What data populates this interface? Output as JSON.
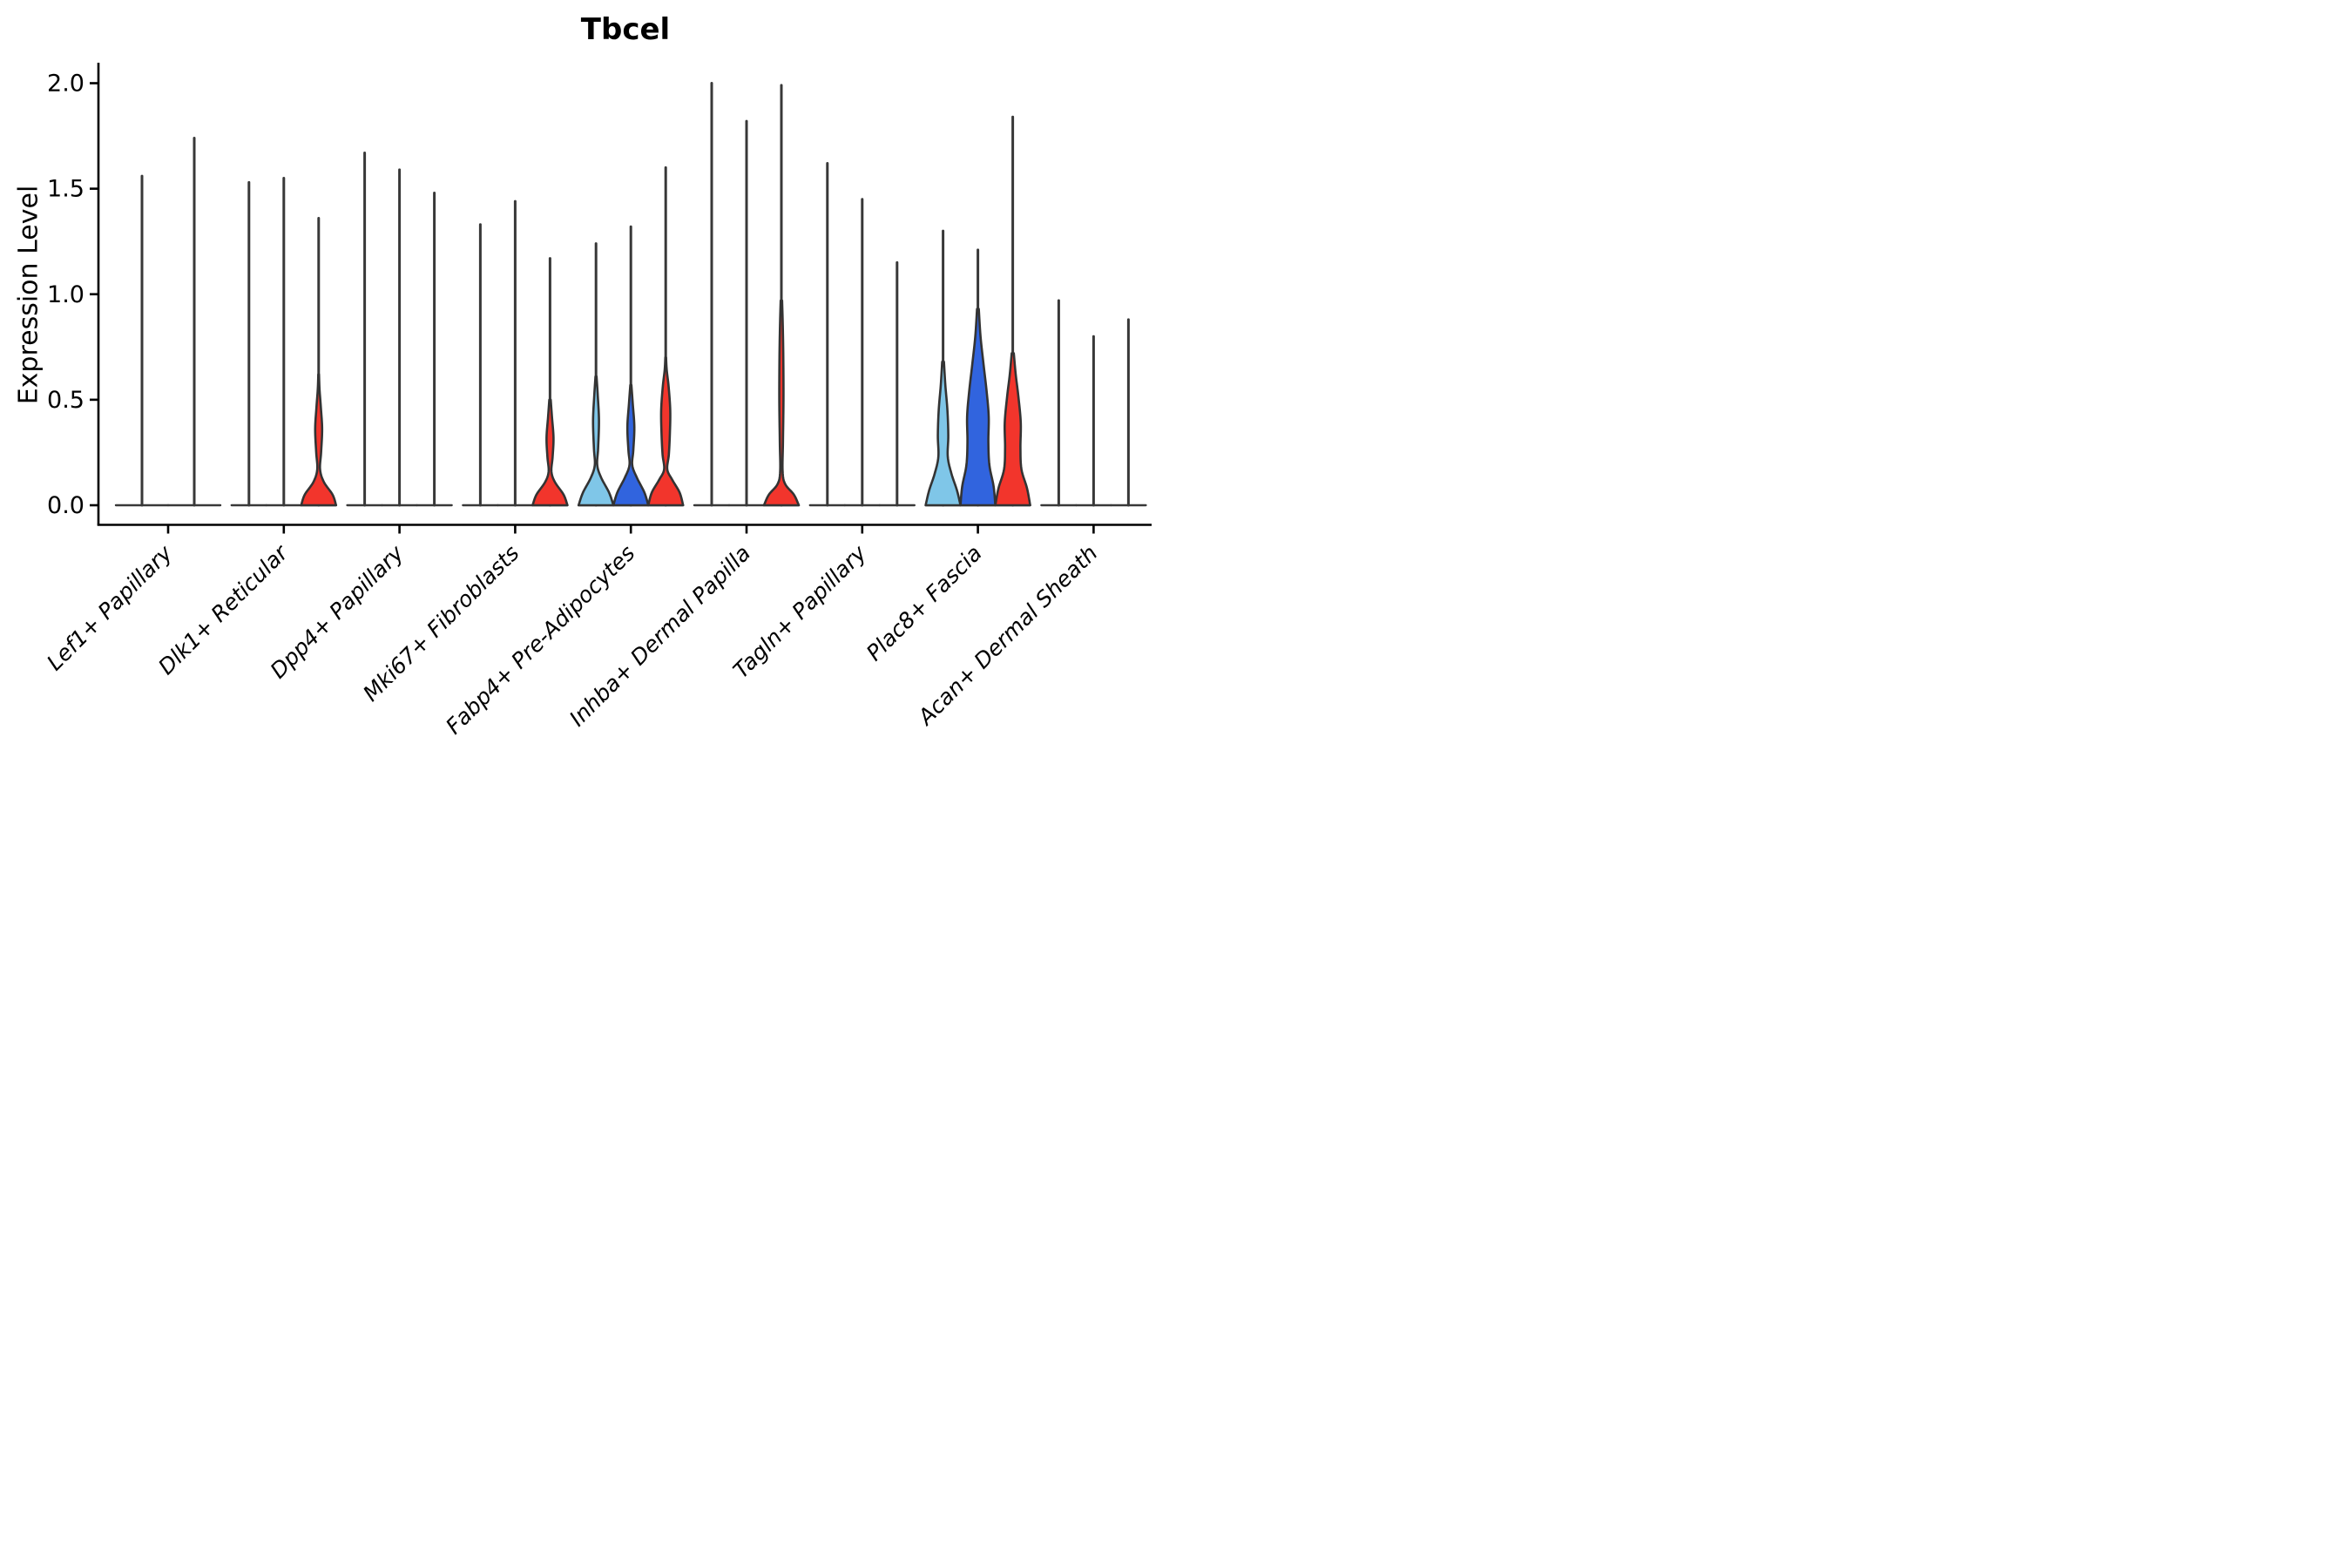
{
  "title": "Tbcel",
  "ylabel": "Expression Level",
  "colors": {
    "lightblue": "#7FC6E8",
    "blue": "#3164DE",
    "red": "#F2352C",
    "outline": "#333333",
    "spike": "#383838",
    "axis": "#000000"
  },
  "chart_data": {
    "type": "violin",
    "title": "Tbcel",
    "ylabel": "Expression Level",
    "xlabel": "",
    "ylim": [
      -0.09,
      2.07
    ],
    "grid": false,
    "legend": "none",
    "yticks": [
      {
        "label": "0.0",
        "value": 0.0
      },
      {
        "label": "0.5",
        "value": 0.5
      },
      {
        "label": "1.0",
        "value": 1.0
      },
      {
        "label": "1.5",
        "value": 1.5
      },
      {
        "label": "2.0",
        "value": 2.0
      }
    ],
    "categories": [
      "Lef1+ Papillary",
      "Dlk1+ Reticular",
      "Dpp4+ Papillary",
      "Mki67+ Fibroblasts",
      "Fabp4+ Pre-Adipocytes",
      "Inhba+ Dermal Papilla",
      "Tagln+ Papillary",
      "Plac8+ Fascia",
      "Acan+ Dermal Sheath"
    ],
    "groups": [
      {
        "category": "Lef1+ Papillary",
        "violins": [
          {
            "color": "lightblue",
            "max": 1.56,
            "offset": -30,
            "half_width": 30,
            "profile": null
          },
          {
            "color": "blue",
            "max": 1.74,
            "offset": 30,
            "half_width": 30,
            "profile": null
          }
        ]
      },
      {
        "category": "Dlk1+ Reticular",
        "violins": [
          {
            "color": "lightblue",
            "max": 1.53,
            "offset": -40,
            "half_width": 20,
            "profile": null
          },
          {
            "color": "blue",
            "max": 1.55,
            "offset": 0,
            "half_width": 20,
            "profile": null
          },
          {
            "color": "red",
            "max": 1.36,
            "offset": 40,
            "half_width": 20,
            "profile": [
              [
                0,
                1.0
              ],
              [
                0.05,
                0.8
              ],
              [
                0.11,
                0.3
              ],
              [
                0.17,
                0.08
              ],
              [
                0.25,
                0.14
              ],
              [
                0.36,
                0.2
              ],
              [
                0.46,
                0.13
              ],
              [
                0.55,
                0.05
              ],
              [
                0.62,
                0.02
              ]
            ]
          }
        ]
      },
      {
        "category": "Dpp4+ Papillary",
        "violins": [
          {
            "color": "lightblue",
            "max": 1.67,
            "offset": -40,
            "half_width": 20,
            "profile": null
          },
          {
            "color": "blue",
            "max": 1.59,
            "offset": 0,
            "half_width": 20,
            "profile": null
          },
          {
            "color": "red",
            "max": 1.48,
            "offset": 40,
            "half_width": 20,
            "profile": null
          }
        ]
      },
      {
        "category": "Mki67+ Fibroblasts",
        "violins": [
          {
            "color": "lightblue",
            "max": 1.33,
            "offset": -40,
            "half_width": 20,
            "profile": null
          },
          {
            "color": "blue",
            "max": 1.44,
            "offset": 0,
            "half_width": 20,
            "profile": null
          },
          {
            "color": "red",
            "max": 1.17,
            "offset": 40,
            "half_width": 20,
            "profile": [
              [
                0,
                1.0
              ],
              [
                0.05,
                0.78
              ],
              [
                0.11,
                0.28
              ],
              [
                0.16,
                0.08
              ],
              [
                0.23,
                0.15
              ],
              [
                0.32,
                0.2
              ],
              [
                0.42,
                0.11
              ],
              [
                0.5,
                0.04
              ]
            ]
          }
        ]
      },
      {
        "category": "Fabp4+ Pre-Adipocytes",
        "violins": [
          {
            "color": "lightblue",
            "max": 1.24,
            "offset": -40,
            "half_width": 20,
            "profile": [
              [
                0,
                1.0
              ],
              [
                0.06,
                0.75
              ],
              [
                0.13,
                0.3
              ],
              [
                0.19,
                0.07
              ],
              [
                0.27,
                0.12
              ],
              [
                0.4,
                0.17
              ],
              [
                0.52,
                0.1
              ],
              [
                0.61,
                0.03
              ]
            ]
          },
          {
            "color": "blue",
            "max": 1.32,
            "offset": 0,
            "half_width": 20,
            "profile": [
              [
                0,
                1.0
              ],
              [
                0.06,
                0.78
              ],
              [
                0.13,
                0.35
              ],
              [
                0.19,
                0.08
              ],
              [
                0.26,
                0.14
              ],
              [
                0.37,
                0.2
              ],
              [
                0.48,
                0.11
              ],
              [
                0.57,
                0.03
              ]
            ]
          },
          {
            "color": "red",
            "max": 1.6,
            "offset": 40,
            "half_width": 20,
            "profile": [
              [
                0,
                1.0
              ],
              [
                0.06,
                0.8
              ],
              [
                0.12,
                0.38
              ],
              [
                0.17,
                0.09
              ],
              [
                0.24,
                0.18
              ],
              [
                0.34,
                0.24
              ],
              [
                0.45,
                0.26
              ],
              [
                0.56,
                0.17
              ],
              [
                0.64,
                0.06
              ],
              [
                0.7,
                0.02
              ]
            ]
          }
        ]
      },
      {
        "category": "Inhba+ Dermal Papilla",
        "violins": [
          {
            "color": "lightblue",
            "max": 2.0,
            "offset": -40,
            "half_width": 20,
            "profile": null
          },
          {
            "color": "blue",
            "max": 1.82,
            "offset": 0,
            "half_width": 20,
            "profile": null
          },
          {
            "color": "red",
            "max": 1.99,
            "offset": 40,
            "half_width": 20,
            "profile": [
              [
                0,
                1.0
              ],
              [
                0.05,
                0.72
              ],
              [
                0.1,
                0.22
              ],
              [
                0.16,
                0.07
              ],
              [
                0.3,
                0.09
              ],
              [
                0.5,
                0.12
              ],
              [
                0.7,
                0.11
              ],
              [
                0.85,
                0.08
              ],
              [
                0.97,
                0.04
              ]
            ]
          }
        ]
      },
      {
        "category": "Tagln+ Papillary",
        "violins": [
          {
            "color": "lightblue",
            "max": 1.62,
            "offset": -40,
            "half_width": 20,
            "profile": null
          },
          {
            "color": "blue",
            "max": 1.45,
            "offset": 0,
            "half_width": 20,
            "profile": null
          },
          {
            "color": "red",
            "max": 1.15,
            "offset": 40,
            "half_width": 20,
            "profile": null
          }
        ]
      },
      {
        "category": "Plac8+ Fascia",
        "violins": [
          {
            "color": "lightblue",
            "max": 1.3,
            "offset": -40,
            "half_width": 20,
            "profile": [
              [
                0,
                1.0
              ],
              [
                0.07,
                0.8
              ],
              [
                0.15,
                0.48
              ],
              [
                0.23,
                0.27
              ],
              [
                0.33,
                0.3
              ],
              [
                0.45,
                0.25
              ],
              [
                0.57,
                0.13
              ],
              [
                0.68,
                0.05
              ]
            ]
          },
          {
            "color": "blue",
            "max": 1.21,
            "offset": 0,
            "half_width": 20,
            "profile": [
              [
                0,
                1.0
              ],
              [
                0.09,
                0.9
              ],
              [
                0.19,
                0.66
              ],
              [
                0.3,
                0.6
              ],
              [
                0.42,
                0.62
              ],
              [
                0.54,
                0.5
              ],
              [
                0.67,
                0.32
              ],
              [
                0.8,
                0.15
              ],
              [
                0.93,
                0.05
              ]
            ]
          },
          {
            "color": "red",
            "max": 1.84,
            "offset": 40,
            "half_width": 20,
            "profile": [
              [
                0,
                1.0
              ],
              [
                0.08,
                0.82
              ],
              [
                0.17,
                0.5
              ],
              [
                0.27,
                0.44
              ],
              [
                0.39,
                0.46
              ],
              [
                0.51,
                0.33
              ],
              [
                0.62,
                0.17
              ],
              [
                0.72,
                0.06
              ]
            ]
          }
        ]
      },
      {
        "category": "Acan+ Dermal Sheath",
        "violins": [
          {
            "color": "lightblue",
            "max": 0.97,
            "offset": -40,
            "half_width": 20,
            "profile": null
          },
          {
            "color": "blue",
            "max": 0.8,
            "offset": 0,
            "half_width": 20,
            "profile": null
          },
          {
            "color": "red",
            "max": 0.88,
            "offset": 40,
            "half_width": 20,
            "profile": null
          }
        ]
      }
    ]
  }
}
